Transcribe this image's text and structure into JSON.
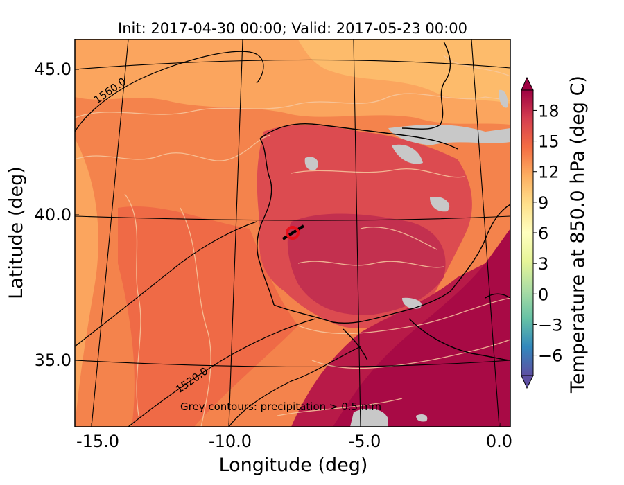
{
  "title": "Init: 2017-04-30 00:00; Valid: 2017-05-23 00:00",
  "xlabel": "Longitude (deg)",
  "ylabel": "Latitude (deg)",
  "x_ticks": [
    "-15.0",
    "-10.0",
    "-5.0",
    "0.0"
  ],
  "y_ticks": [
    "45.0",
    "40.0",
    "35.0"
  ],
  "colorbar": {
    "label": "Temperature at 850.0 hPa (deg C)",
    "ticks": [
      "18",
      "15",
      "12",
      "9",
      "6",
      "3",
      "0",
      "−3",
      "−6"
    ],
    "tick_values": [
      18,
      15,
      12,
      9,
      6,
      3,
      0,
      -3,
      -6
    ],
    "range": [
      -8,
      20
    ],
    "colors": [
      "#5e4fa2",
      "#3288bd",
      "#66c2a5",
      "#abdda4",
      "#e6f598",
      "#ffffbf",
      "#fee08b",
      "#fdae61",
      "#f46d43",
      "#d53e4f",
      "#9e0142"
    ]
  },
  "contour_labels": [
    "1560.0",
    "1520.0"
  ],
  "annotation": "Grey contours: precipitation > 0.5 mm",
  "map": {
    "lon_range": [
      -16,
      0
    ],
    "lat_range": [
      33,
      46
    ],
    "marker_color": "#e8101a",
    "precip_color": "#c8c8c8",
    "coast_color": "#000000"
  }
}
